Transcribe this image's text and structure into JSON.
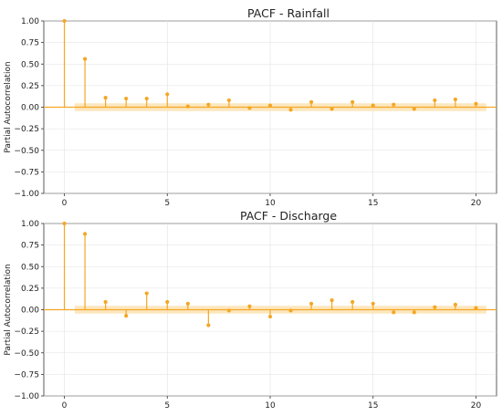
{
  "chart_data": [
    {
      "type": "stem",
      "title": "PACF - Rainfall",
      "xlabel": "",
      "ylabel": "Partial Autocorrelation",
      "xlim": [
        -1,
        21
      ],
      "ylim": [
        -1.0,
        1.0
      ],
      "xticks": [
        0,
        5,
        10,
        15,
        20
      ],
      "yticks": [
        "1.00",
        "0.75",
        "0.50",
        "0.25",
        "0.00",
        "−0.25",
        "−0.50",
        "−0.75",
        "−1.00"
      ],
      "grid": true,
      "confidence_band": [
        -0.045,
        0.045
      ],
      "x": [
        0,
        1,
        2,
        3,
        4,
        5,
        6,
        7,
        8,
        9,
        10,
        11,
        12,
        13,
        14,
        15,
        16,
        17,
        18,
        19,
        20
      ],
      "values": [
        1.0,
        0.56,
        0.11,
        0.1,
        0.1,
        0.15,
        0.01,
        0.03,
        0.08,
        -0.01,
        0.02,
        -0.03,
        0.06,
        -0.02,
        0.06,
        0.02,
        0.03,
        -0.02,
        0.08,
        0.09,
        0.04
      ],
      "color": "#f5a623",
      "band_color": "#fbe3b4"
    },
    {
      "type": "stem",
      "title": "PACF - Discharge",
      "xlabel": "",
      "ylabel": "Partial Autocorrelation",
      "xlim": [
        -1,
        21
      ],
      "ylim": [
        -1.0,
        1.0
      ],
      "xticks": [
        0,
        5,
        10,
        15,
        20
      ],
      "yticks": [
        "1.00",
        "0.75",
        "0.50",
        "0.25",
        "0.00",
        "−0.25",
        "−0.50",
        "−0.75",
        "−1.00"
      ],
      "grid": true,
      "confidence_band": [
        -0.045,
        0.045
      ],
      "x": [
        0,
        1,
        2,
        3,
        4,
        5,
        6,
        7,
        8,
        9,
        10,
        11,
        12,
        13,
        14,
        15,
        16,
        17,
        18,
        19,
        20
      ],
      "values": [
        1.0,
        0.88,
        0.09,
        -0.07,
        0.19,
        0.09,
        0.07,
        -0.18,
        -0.01,
        0.04,
        -0.08,
        -0.01,
        0.07,
        0.11,
        0.09,
        0.07,
        -0.03,
        -0.03,
        0.03,
        0.06,
        0.02
      ],
      "color": "#f5a623",
      "band_color": "#fbe3b4"
    }
  ]
}
